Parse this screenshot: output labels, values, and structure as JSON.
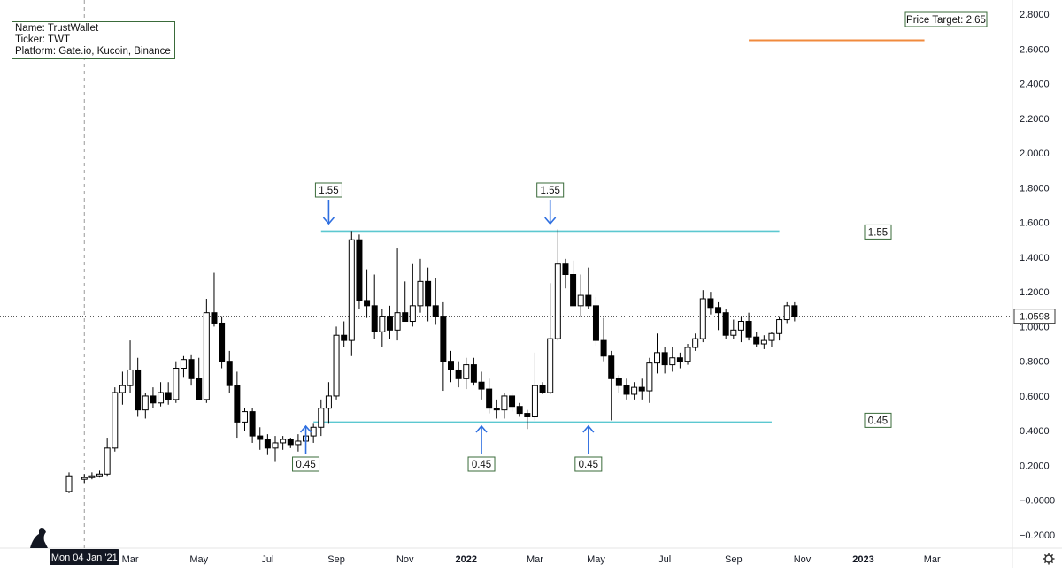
{
  "info": {
    "name_line": "Name: TrustWallet",
    "ticker_line": "Ticker: TWT",
    "platform_line": "Platform: Gate.io, Kucoin, Binance"
  },
  "chart_data": {
    "type": "candlestick",
    "title": "",
    "xlabel": "",
    "ylabel": "",
    "ylim": [
      -0.2,
      2.85
    ],
    "y_ticks": [
      2.8,
      2.6,
      2.4,
      2.2,
      2.0,
      1.8,
      1.6,
      1.4,
      1.2,
      1.0,
      0.8,
      0.6,
      0.4,
      0.2,
      0.0,
      -0.2
    ],
    "y_tick_labels": [
      "2.8000",
      "2.6000",
      "2.4000",
      "2.2000",
      "2.0000",
      "1.8000",
      "1.6000",
      "1.4000",
      "1.2000",
      "1.0000",
      "0.8000",
      "0.6000",
      "0.4000",
      "0.2000",
      "−0.0000",
      "−0.2000"
    ],
    "x_tick_labels": [
      "Mar",
      "May",
      "Jul",
      "Sep",
      "Nov",
      "2022",
      "Mar",
      "May",
      "Jul",
      "Sep",
      "Nov",
      "2023",
      "Mar"
    ],
    "x_tick_weeks": [
      8,
      17,
      26,
      35,
      44,
      52,
      61,
      69,
      78,
      87,
      96,
      104,
      113
    ],
    "x_tick_bold": [
      false,
      false,
      false,
      false,
      false,
      true,
      false,
      false,
      false,
      false,
      false,
      true,
      false
    ],
    "crosshair_date_label": "Mon 04 Jan '21",
    "crosshair_week": 2,
    "current_price": 1.0598,
    "current_price_label": "1.0598",
    "price_target": 2.65,
    "price_target_label": "Price Target: 2.65",
    "price_target_line": {
      "start_week": 89,
      "end_week": 112
    },
    "resistance": {
      "value": 1.55,
      "label": "1.55",
      "start_week": 33,
      "end_week": 93
    },
    "support": {
      "value": 0.45,
      "label": "0.45",
      "start_week": 32,
      "end_week": 92
    },
    "top_callouts": [
      {
        "week": 34,
        "label": "1.55"
      },
      {
        "week": 63,
        "label": "1.55"
      }
    ],
    "bottom_callouts": [
      {
        "week": 31,
        "label": "0.45"
      },
      {
        "week": 54,
        "label": "0.45"
      },
      {
        "week": 68,
        "label": "0.45"
      }
    ],
    "candles": [
      {
        "t": 0,
        "o": 0.05,
        "h": 0.16,
        "l": 0.04,
        "c": 0.14
      },
      {
        "t": 2,
        "o": 0.12,
        "h": 0.15,
        "l": 0.1,
        "c": 0.13
      },
      {
        "t": 3,
        "o": 0.13,
        "h": 0.16,
        "l": 0.12,
        "c": 0.14
      },
      {
        "t": 4,
        "o": 0.14,
        "h": 0.17,
        "l": 0.13,
        "c": 0.15
      },
      {
        "t": 5,
        "o": 0.15,
        "h": 0.36,
        "l": 0.14,
        "c": 0.3
      },
      {
        "t": 6,
        "o": 0.3,
        "h": 0.65,
        "l": 0.28,
        "c": 0.62
      },
      {
        "t": 7,
        "o": 0.62,
        "h": 0.74,
        "l": 0.55,
        "c": 0.66
      },
      {
        "t": 8,
        "o": 0.66,
        "h": 0.92,
        "l": 0.62,
        "c": 0.75
      },
      {
        "t": 9,
        "o": 0.75,
        "h": 0.82,
        "l": 0.48,
        "c": 0.52
      },
      {
        "t": 10,
        "o": 0.52,
        "h": 0.62,
        "l": 0.47,
        "c": 0.6
      },
      {
        "t": 11,
        "o": 0.6,
        "h": 0.65,
        "l": 0.53,
        "c": 0.56
      },
      {
        "t": 12,
        "o": 0.56,
        "h": 0.68,
        "l": 0.54,
        "c": 0.62
      },
      {
        "t": 13,
        "o": 0.62,
        "h": 0.68,
        "l": 0.55,
        "c": 0.58
      },
      {
        "t": 14,
        "o": 0.58,
        "h": 0.8,
        "l": 0.56,
        "c": 0.76
      },
      {
        "t": 15,
        "o": 0.76,
        "h": 0.83,
        "l": 0.71,
        "c": 0.81
      },
      {
        "t": 16,
        "o": 0.81,
        "h": 0.84,
        "l": 0.66,
        "c": 0.7
      },
      {
        "t": 17,
        "o": 0.7,
        "h": 0.82,
        "l": 0.58,
        "c": 0.58
      },
      {
        "t": 18,
        "o": 0.58,
        "h": 1.16,
        "l": 0.56,
        "c": 1.08
      },
      {
        "t": 19,
        "o": 1.08,
        "h": 1.31,
        "l": 1.0,
        "c": 1.02
      },
      {
        "t": 20,
        "o": 1.02,
        "h": 1.06,
        "l": 0.76,
        "c": 0.8
      },
      {
        "t": 21,
        "o": 0.8,
        "h": 0.86,
        "l": 0.62,
        "c": 0.66
      },
      {
        "t": 22,
        "o": 0.66,
        "h": 0.74,
        "l": 0.36,
        "c": 0.45
      },
      {
        "t": 23,
        "o": 0.45,
        "h": 0.53,
        "l": 0.4,
        "c": 0.51
      },
      {
        "t": 24,
        "o": 0.51,
        "h": 0.53,
        "l": 0.33,
        "c": 0.37
      },
      {
        "t": 25,
        "o": 0.37,
        "h": 0.42,
        "l": 0.29,
        "c": 0.35
      },
      {
        "t": 26,
        "o": 0.35,
        "h": 0.38,
        "l": 0.26,
        "c": 0.3
      },
      {
        "t": 27,
        "o": 0.3,
        "h": 0.37,
        "l": 0.22,
        "c": 0.33
      },
      {
        "t": 28,
        "o": 0.33,
        "h": 0.37,
        "l": 0.29,
        "c": 0.35
      },
      {
        "t": 29,
        "o": 0.35,
        "h": 0.36,
        "l": 0.3,
        "c": 0.32
      },
      {
        "t": 30,
        "o": 0.32,
        "h": 0.38,
        "l": 0.28,
        "c": 0.34
      },
      {
        "t": 31,
        "o": 0.34,
        "h": 0.38,
        "l": 0.3,
        "c": 0.37
      },
      {
        "t": 32,
        "o": 0.37,
        "h": 0.44,
        "l": 0.33,
        "c": 0.42
      },
      {
        "t": 33,
        "o": 0.42,
        "h": 0.58,
        "l": 0.37,
        "c": 0.53
      },
      {
        "t": 34,
        "o": 0.53,
        "h": 0.68,
        "l": 0.44,
        "c": 0.6
      },
      {
        "t": 35,
        "o": 0.6,
        "h": 1.0,
        "l": 0.58,
        "c": 0.95
      },
      {
        "t": 36,
        "o": 0.95,
        "h": 1.03,
        "l": 0.88,
        "c": 0.92
      },
      {
        "t": 37,
        "o": 0.92,
        "h": 1.55,
        "l": 0.83,
        "c": 1.5
      },
      {
        "t": 38,
        "o": 1.5,
        "h": 1.53,
        "l": 1.1,
        "c": 1.15
      },
      {
        "t": 39,
        "o": 1.15,
        "h": 1.33,
        "l": 1.05,
        "c": 1.12
      },
      {
        "t": 40,
        "o": 1.12,
        "h": 1.3,
        "l": 0.93,
        "c": 0.97
      },
      {
        "t": 41,
        "o": 0.97,
        "h": 1.1,
        "l": 0.88,
        "c": 1.06
      },
      {
        "t": 42,
        "o": 1.06,
        "h": 1.12,
        "l": 0.93,
        "c": 0.98
      },
      {
        "t": 43,
        "o": 0.98,
        "h": 1.45,
        "l": 0.92,
        "c": 1.08
      },
      {
        "t": 44,
        "o": 1.08,
        "h": 1.26,
        "l": 1.05,
        "c": 1.03
      },
      {
        "t": 45,
        "o": 1.03,
        "h": 1.36,
        "l": 1.0,
        "c": 1.12
      },
      {
        "t": 46,
        "o": 1.12,
        "h": 1.39,
        "l": 1.08,
        "c": 1.26
      },
      {
        "t": 47,
        "o": 1.26,
        "h": 1.34,
        "l": 1.03,
        "c": 1.12
      },
      {
        "t": 48,
        "o": 1.12,
        "h": 1.28,
        "l": 1.01,
        "c": 1.06
      },
      {
        "t": 49,
        "o": 1.06,
        "h": 1.14,
        "l": 0.63,
        "c": 0.8
      },
      {
        "t": 50,
        "o": 0.8,
        "h": 0.86,
        "l": 0.68,
        "c": 0.75
      },
      {
        "t": 51,
        "o": 0.75,
        "h": 0.8,
        "l": 0.65,
        "c": 0.7
      },
      {
        "t": 52,
        "o": 0.7,
        "h": 0.82,
        "l": 0.64,
        "c": 0.78
      },
      {
        "t": 53,
        "o": 0.78,
        "h": 0.82,
        "l": 0.66,
        "c": 0.68
      },
      {
        "t": 54,
        "o": 0.68,
        "h": 0.74,
        "l": 0.58,
        "c": 0.64
      },
      {
        "t": 55,
        "o": 0.64,
        "h": 0.7,
        "l": 0.5,
        "c": 0.53
      },
      {
        "t": 56,
        "o": 0.53,
        "h": 0.58,
        "l": 0.47,
        "c": 0.52
      },
      {
        "t": 57,
        "o": 0.52,
        "h": 0.62,
        "l": 0.47,
        "c": 0.6
      },
      {
        "t": 58,
        "o": 0.6,
        "h": 0.62,
        "l": 0.51,
        "c": 0.54
      },
      {
        "t": 59,
        "o": 0.54,
        "h": 0.56,
        "l": 0.48,
        "c": 0.5
      },
      {
        "t": 60,
        "o": 0.5,
        "h": 0.52,
        "l": 0.41,
        "c": 0.48
      },
      {
        "t": 61,
        "o": 0.48,
        "h": 0.85,
        "l": 0.46,
        "c": 0.66
      },
      {
        "t": 62,
        "o": 0.66,
        "h": 0.68,
        "l": 0.61,
        "c": 0.62
      },
      {
        "t": 63,
        "o": 0.62,
        "h": 1.25,
        "l": 0.61,
        "c": 0.93
      },
      {
        "t": 64,
        "o": 0.93,
        "h": 1.56,
        "l": 0.92,
        "c": 1.36
      },
      {
        "t": 65,
        "o": 1.36,
        "h": 1.39,
        "l": 1.22,
        "c": 1.3
      },
      {
        "t": 66,
        "o": 1.3,
        "h": 1.38,
        "l": 1.13,
        "c": 1.12
      },
      {
        "t": 67,
        "o": 1.12,
        "h": 1.3,
        "l": 1.06,
        "c": 1.18
      },
      {
        "t": 68,
        "o": 1.18,
        "h": 1.34,
        "l": 1.1,
        "c": 1.12
      },
      {
        "t": 69,
        "o": 1.12,
        "h": 1.17,
        "l": 0.89,
        "c": 0.92
      },
      {
        "t": 70,
        "o": 0.92,
        "h": 1.05,
        "l": 0.8,
        "c": 0.83
      },
      {
        "t": 71,
        "o": 0.83,
        "h": 0.86,
        "l": 0.46,
        "c": 0.7
      },
      {
        "t": 72,
        "o": 0.7,
        "h": 0.72,
        "l": 0.62,
        "c": 0.66
      },
      {
        "t": 73,
        "o": 0.66,
        "h": 0.7,
        "l": 0.58,
        "c": 0.61
      },
      {
        "t": 74,
        "o": 0.61,
        "h": 0.68,
        "l": 0.58,
        "c": 0.65
      },
      {
        "t": 75,
        "o": 0.65,
        "h": 0.7,
        "l": 0.58,
        "c": 0.63
      },
      {
        "t": 76,
        "o": 0.63,
        "h": 0.82,
        "l": 0.56,
        "c": 0.79
      },
      {
        "t": 77,
        "o": 0.79,
        "h": 0.96,
        "l": 0.73,
        "c": 0.85
      },
      {
        "t": 78,
        "o": 0.85,
        "h": 0.88,
        "l": 0.73,
        "c": 0.78
      },
      {
        "t": 79,
        "o": 0.78,
        "h": 0.88,
        "l": 0.74,
        "c": 0.82
      },
      {
        "t": 80,
        "o": 0.82,
        "h": 0.85,
        "l": 0.76,
        "c": 0.8
      },
      {
        "t": 81,
        "o": 0.8,
        "h": 0.9,
        "l": 0.78,
        "c": 0.88
      },
      {
        "t": 82,
        "o": 0.88,
        "h": 0.96,
        "l": 0.86,
        "c": 0.93
      },
      {
        "t": 83,
        "o": 0.93,
        "h": 1.21,
        "l": 0.91,
        "c": 1.16
      },
      {
        "t": 84,
        "o": 1.16,
        "h": 1.2,
        "l": 1.07,
        "c": 1.11
      },
      {
        "t": 85,
        "o": 1.11,
        "h": 1.14,
        "l": 0.98,
        "c": 1.08
      },
      {
        "t": 86,
        "o": 1.08,
        "h": 1.1,
        "l": 0.93,
        "c": 0.95
      },
      {
        "t": 87,
        "o": 0.95,
        "h": 1.04,
        "l": 0.93,
        "c": 0.98
      },
      {
        "t": 88,
        "o": 0.98,
        "h": 1.06,
        "l": 0.91,
        "c": 1.03
      },
      {
        "t": 89,
        "o": 1.03,
        "h": 1.08,
        "l": 0.92,
        "c": 0.94
      },
      {
        "t": 90,
        "o": 0.94,
        "h": 0.97,
        "l": 0.88,
        "c": 0.9
      },
      {
        "t": 91,
        "o": 0.9,
        "h": 0.95,
        "l": 0.87,
        "c": 0.92
      },
      {
        "t": 92,
        "o": 0.92,
        "h": 0.97,
        "l": 0.88,
        "c": 0.96
      },
      {
        "t": 93,
        "o": 0.96,
        "h": 1.06,
        "l": 0.92,
        "c": 1.04
      },
      {
        "t": 94,
        "o": 1.04,
        "h": 1.14,
        "l": 1.02,
        "c": 1.12
      },
      {
        "t": 95,
        "o": 1.12,
        "h": 1.14,
        "l": 1.03,
        "c": 1.06
      }
    ]
  }
}
